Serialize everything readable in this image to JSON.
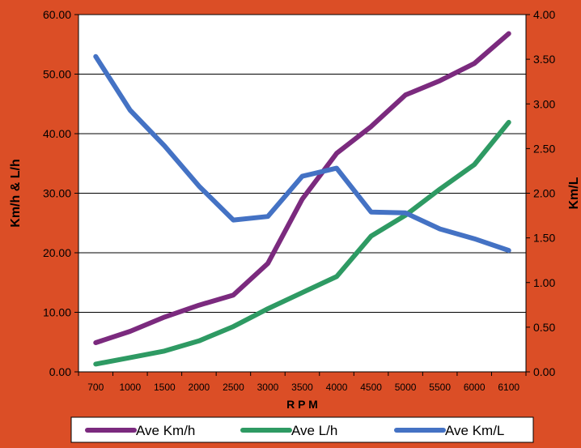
{
  "chart_data": {
    "type": "line",
    "categories": [
      "700",
      "1000",
      "1500",
      "2000",
      "2500",
      "3000",
      "3500",
      "4000",
      "4500",
      "5000",
      "5500",
      "6000",
      "6100"
    ],
    "xlabel": "R P M",
    "ylabel_left": "Km/h & L/h",
    "ylabel_right": "Km/L",
    "ylim_left": [
      0,
      60
    ],
    "yticks_left": [
      "0.00",
      "10.00",
      "20.00",
      "30.00",
      "40.00",
      "50.00",
      "60.00"
    ],
    "ylim_right": [
      0,
      4
    ],
    "yticks_right": [
      "0.00",
      "0.50",
      "1.00",
      "1.50",
      "2.00",
      "2.50",
      "3.00",
      "3.50",
      "4.00"
    ],
    "grid": "horizontal",
    "legend_position": "bottom",
    "series": [
      {
        "name": "Ave Km/h",
        "axis": "left",
        "color": "#7B2A7E",
        "values": [
          4.9,
          6.8,
          9.2,
          11.2,
          12.9,
          18.2,
          29.0,
          36.7,
          41.2,
          46.5,
          48.9,
          51.8,
          56.8
        ]
      },
      {
        "name": "Ave L/h",
        "axis": "left",
        "color": "#2E9A63",
        "values": [
          1.3,
          2.4,
          3.5,
          5.2,
          7.6,
          10.6,
          13.3,
          16.0,
          22.8,
          26.3,
          30.7,
          34.8,
          41.9
        ]
      },
      {
        "name": "Ave Km/L",
        "axis": "right",
        "color": "#4472C4",
        "values": [
          3.53,
          2.93,
          2.53,
          2.08,
          1.7,
          1.74,
          2.19,
          2.28,
          1.79,
          1.78,
          1.6,
          1.49,
          1.36
        ]
      }
    ]
  }
}
